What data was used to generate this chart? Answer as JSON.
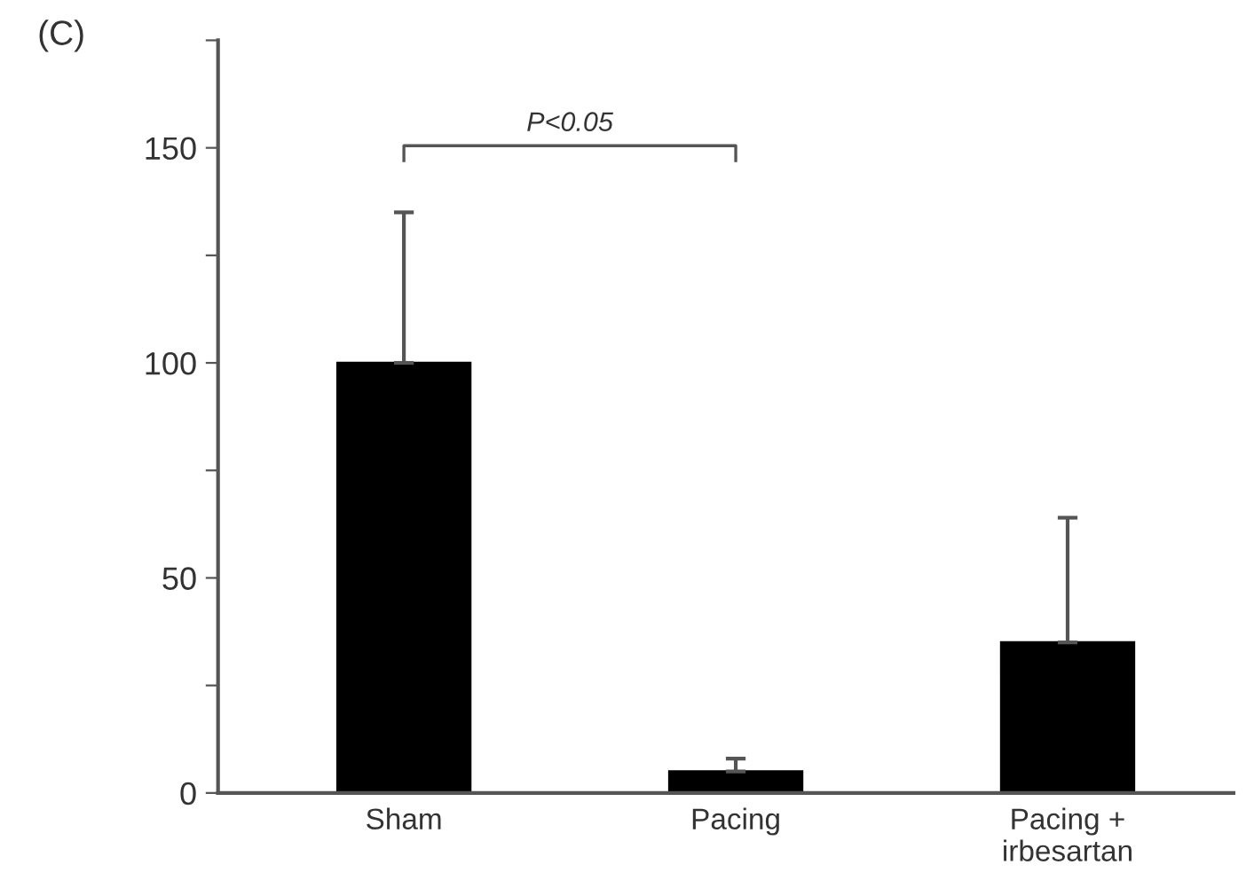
{
  "chart_data": {
    "type": "bar",
    "categories": [
      "Sham",
      "Pacing",
      "Pacing +\nirbesartan"
    ],
    "values": [
      100,
      5,
      35
    ],
    "errors": [
      [
        100,
        135
      ],
      [
        5,
        8
      ],
      [
        35,
        64
      ]
    ],
    "color": "#000000",
    "ylim": [
      0,
      175
    ],
    "yticks": [
      0,
      {
        "value": 25,
        "label": null
      },
      50,
      {
        "value": 75,
        "label": null
      },
      100,
      {
        "value": 125,
        "label": null
      },
      150,
      {
        "value": 175,
        "label": null
      }
    ],
    "annotations": [
      "(C)",
      "P<0.05"
    ],
    "grid": false,
    "legend": false
  }
}
